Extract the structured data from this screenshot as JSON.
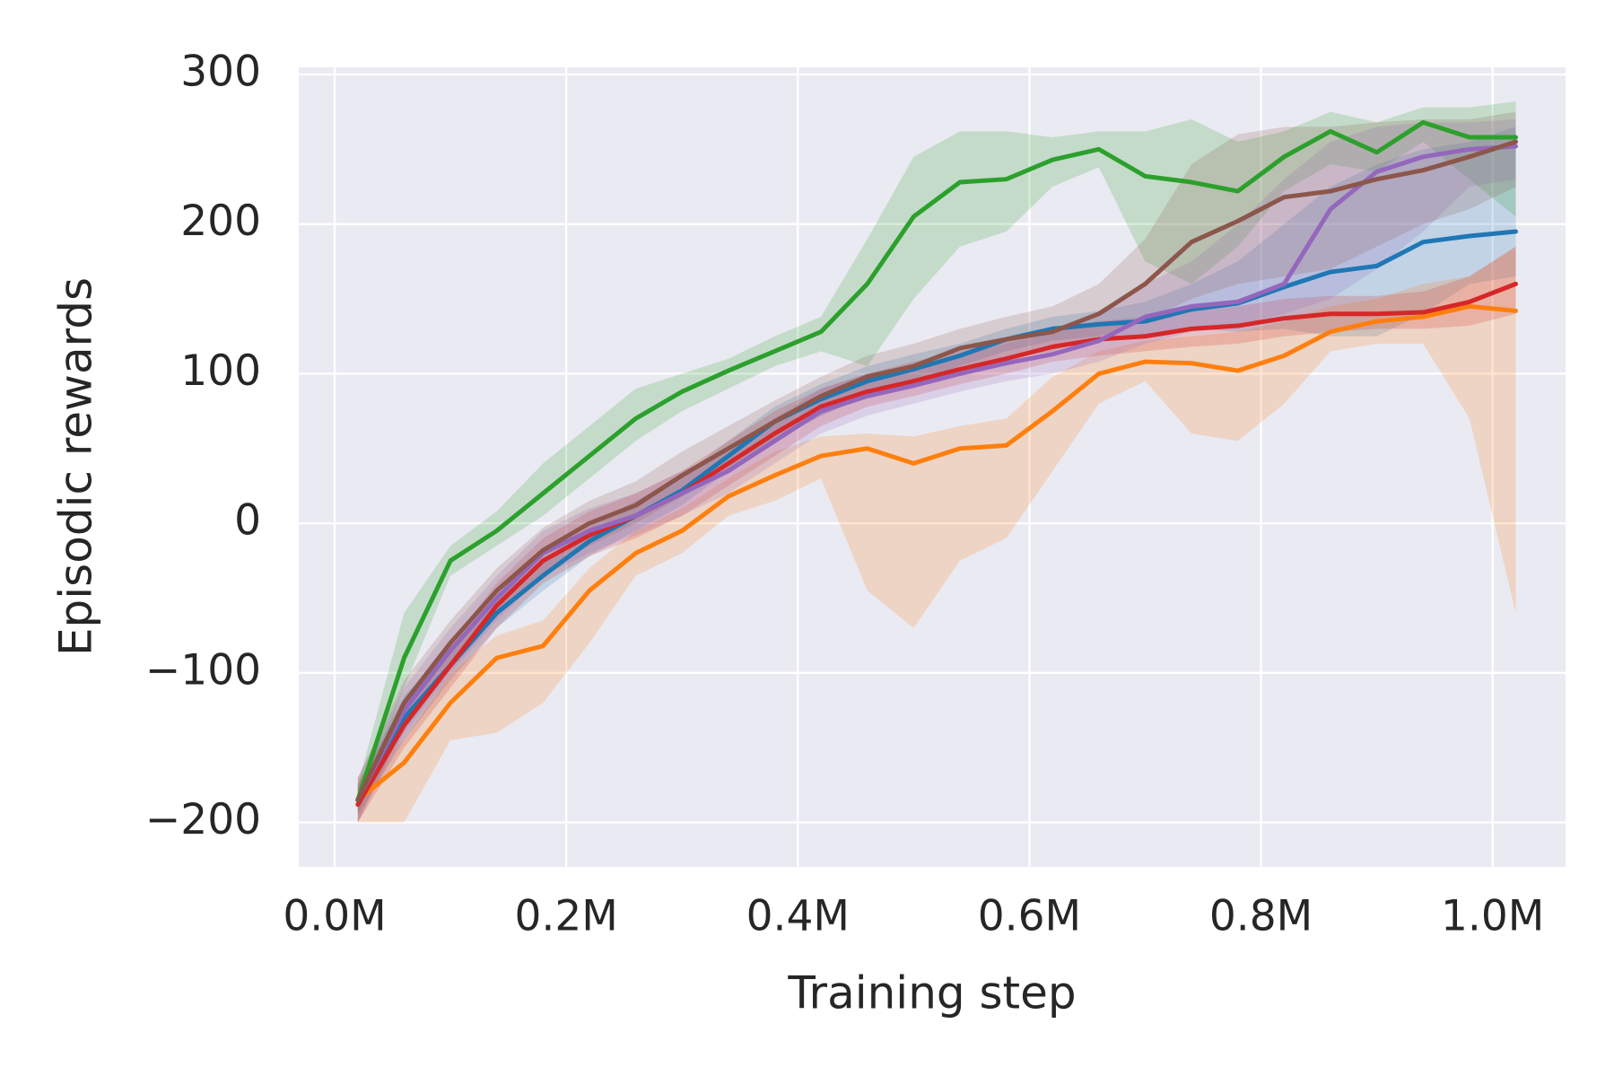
{
  "chart_data": {
    "type": "line",
    "xlabel": "Training step",
    "ylabel": "Episodic rewards",
    "grid": true,
    "xlim": [
      -0.031,
      1.063
    ],
    "ylim": [
      -229.7,
      304.8
    ],
    "xticks": [
      {
        "value": 0,
        "label": "0.0M"
      },
      {
        "value": 0.2,
        "label": "0.2M"
      },
      {
        "value": 0.4,
        "label": "0.4M"
      },
      {
        "value": 0.6,
        "label": "0.6M"
      },
      {
        "value": 0.8,
        "label": "0.8M"
      },
      {
        "value": 1.0,
        "label": "1.0M"
      }
    ],
    "yticks": [
      {
        "value": -200,
        "label": "−200"
      },
      {
        "value": -100,
        "label": "−100"
      },
      0,
      100,
      200,
      300
    ],
    "x": [
      0.02,
      0.06,
      0.1,
      0.14,
      0.18,
      0.22,
      0.26,
      0.3,
      0.34,
      0.38,
      0.42,
      0.46,
      0.5,
      0.54,
      0.58,
      0.62,
      0.66,
      0.7,
      0.74,
      0.78,
      0.82,
      0.86,
      0.9,
      0.94,
      0.98,
      1.02
    ],
    "series": [
      {
        "color": "#1f77b4",
        "values": [
          -185,
          -130,
          -95,
          -60,
          -35,
          -12,
          5,
          22,
          45,
          68,
          83,
          95,
          103,
          112,
          123,
          130,
          133,
          135,
          143,
          147,
          158,
          168,
          172,
          188,
          192,
          195
        ],
        "lower": [
          -195,
          -145,
          -105,
          -70,
          -45,
          -22,
          -5,
          12,
          35,
          55,
          72,
          85,
          95,
          105,
          115,
          122,
          125,
          125,
          130,
          128,
          130,
          125,
          125,
          140,
          160,
          165
        ],
        "upper": [
          -175,
          -115,
          -85,
          -50,
          -25,
          -2,
          15,
          32,
          55,
          78,
          93,
          105,
          113,
          120,
          130,
          138,
          142,
          148,
          160,
          175,
          200,
          225,
          240,
          250,
          255,
          265
        ]
      },
      {
        "color": "#ff7f0e",
        "values": [
          -185,
          -160,
          -120,
          -90,
          -82,
          -45,
          -20,
          -5,
          18,
          32,
          45,
          50,
          40,
          50,
          52,
          75,
          100,
          108,
          107,
          102,
          112,
          128,
          135,
          138,
          145,
          142
        ],
        "lower": [
          -200,
          -200,
          -145,
          -140,
          -120,
          -80,
          -35,
          -20,
          5,
          15,
          30,
          -45,
          -70,
          -25,
          -10,
          35,
          80,
          95,
          60,
          55,
          80,
          115,
          120,
          120,
          70,
          -60
        ],
        "upper": [
          -170,
          -145,
          -100,
          -75,
          -65,
          -30,
          -5,
          10,
          30,
          48,
          58,
          60,
          58,
          65,
          70,
          98,
          115,
          122,
          125,
          128,
          135,
          145,
          150,
          160,
          165,
          185
        ]
      },
      {
        "color": "#2ca02c",
        "values": [
          -185,
          -90,
          -25,
          -5,
          20,
          45,
          70,
          88,
          102,
          115,
          128,
          160,
          205,
          228,
          230,
          243,
          250,
          232,
          228,
          222,
          245,
          262,
          248,
          268,
          258,
          258
        ],
        "lower": [
          -195,
          -110,
          -35,
          -15,
          5,
          30,
          55,
          75,
          90,
          105,
          115,
          105,
          150,
          185,
          195,
          225,
          238,
          175,
          160,
          185,
          222,
          240,
          235,
          255,
          230,
          205
        ],
        "upper": [
          -175,
          -60,
          -15,
          8,
          40,
          65,
          90,
          100,
          110,
          125,
          138,
          190,
          245,
          262,
          262,
          258,
          262,
          262,
          270,
          255,
          262,
          275,
          268,
          278,
          278,
          282
        ]
      },
      {
        "color": "#d62728",
        "values": [
          -188,
          -135,
          -95,
          -55,
          -25,
          -8,
          5,
          20,
          40,
          60,
          78,
          88,
          95,
          103,
          110,
          118,
          123,
          125,
          130,
          132,
          137,
          140,
          140,
          141,
          148,
          160
        ],
        "lower": [
          -200,
          -150,
          -110,
          -70,
          -40,
          -22,
          -10,
          5,
          25,
          45,
          65,
          78,
          85,
          93,
          100,
          108,
          112,
          115,
          118,
          120,
          125,
          128,
          130,
          130,
          132,
          140
        ],
        "upper": [
          -175,
          -120,
          -80,
          -40,
          -10,
          8,
          20,
          35,
          55,
          75,
          90,
          100,
          108,
          115,
          122,
          130,
          135,
          138,
          142,
          145,
          150,
          152,
          152,
          155,
          165,
          185
        ]
      },
      {
        "color": "#9467bd",
        "values": [
          -185,
          -125,
          -85,
          -50,
          -20,
          -5,
          5,
          20,
          35,
          55,
          75,
          85,
          92,
          100,
          107,
          113,
          122,
          138,
          145,
          148,
          160,
          210,
          235,
          245,
          250,
          252
        ],
        "lower": [
          -200,
          -140,
          -100,
          -65,
          -35,
          -20,
          -8,
          5,
          20,
          40,
          60,
          72,
          80,
          88,
          95,
          100,
          108,
          120,
          128,
          132,
          140,
          150,
          170,
          195,
          225,
          230
        ],
        "upper": [
          -170,
          -110,
          -70,
          -35,
          -5,
          10,
          20,
          35,
          50,
          70,
          90,
          100,
          105,
          113,
          120,
          127,
          140,
          160,
          175,
          200,
          230,
          255,
          265,
          268,
          268,
          270
        ]
      },
      {
        "color": "#8c564b",
        "values": [
          -185,
          -120,
          -80,
          -45,
          -18,
          0,
          12,
          32,
          50,
          68,
          85,
          98,
          105,
          117,
          123,
          128,
          140,
          160,
          188,
          202,
          218,
          222,
          230,
          236,
          245,
          255
        ],
        "lower": [
          -200,
          -135,
          -95,
          -60,
          -33,
          -15,
          0,
          18,
          35,
          55,
          72,
          85,
          92,
          105,
          110,
          115,
          125,
          135,
          150,
          160,
          165,
          170,
          185,
          200,
          210,
          225
        ],
        "upper": [
          -170,
          -105,
          -65,
          -30,
          -3,
          15,
          28,
          48,
          65,
          82,
          98,
          112,
          120,
          130,
          138,
          145,
          160,
          190,
          240,
          260,
          265,
          265,
          268,
          270,
          270,
          275
        ]
      }
    ]
  }
}
